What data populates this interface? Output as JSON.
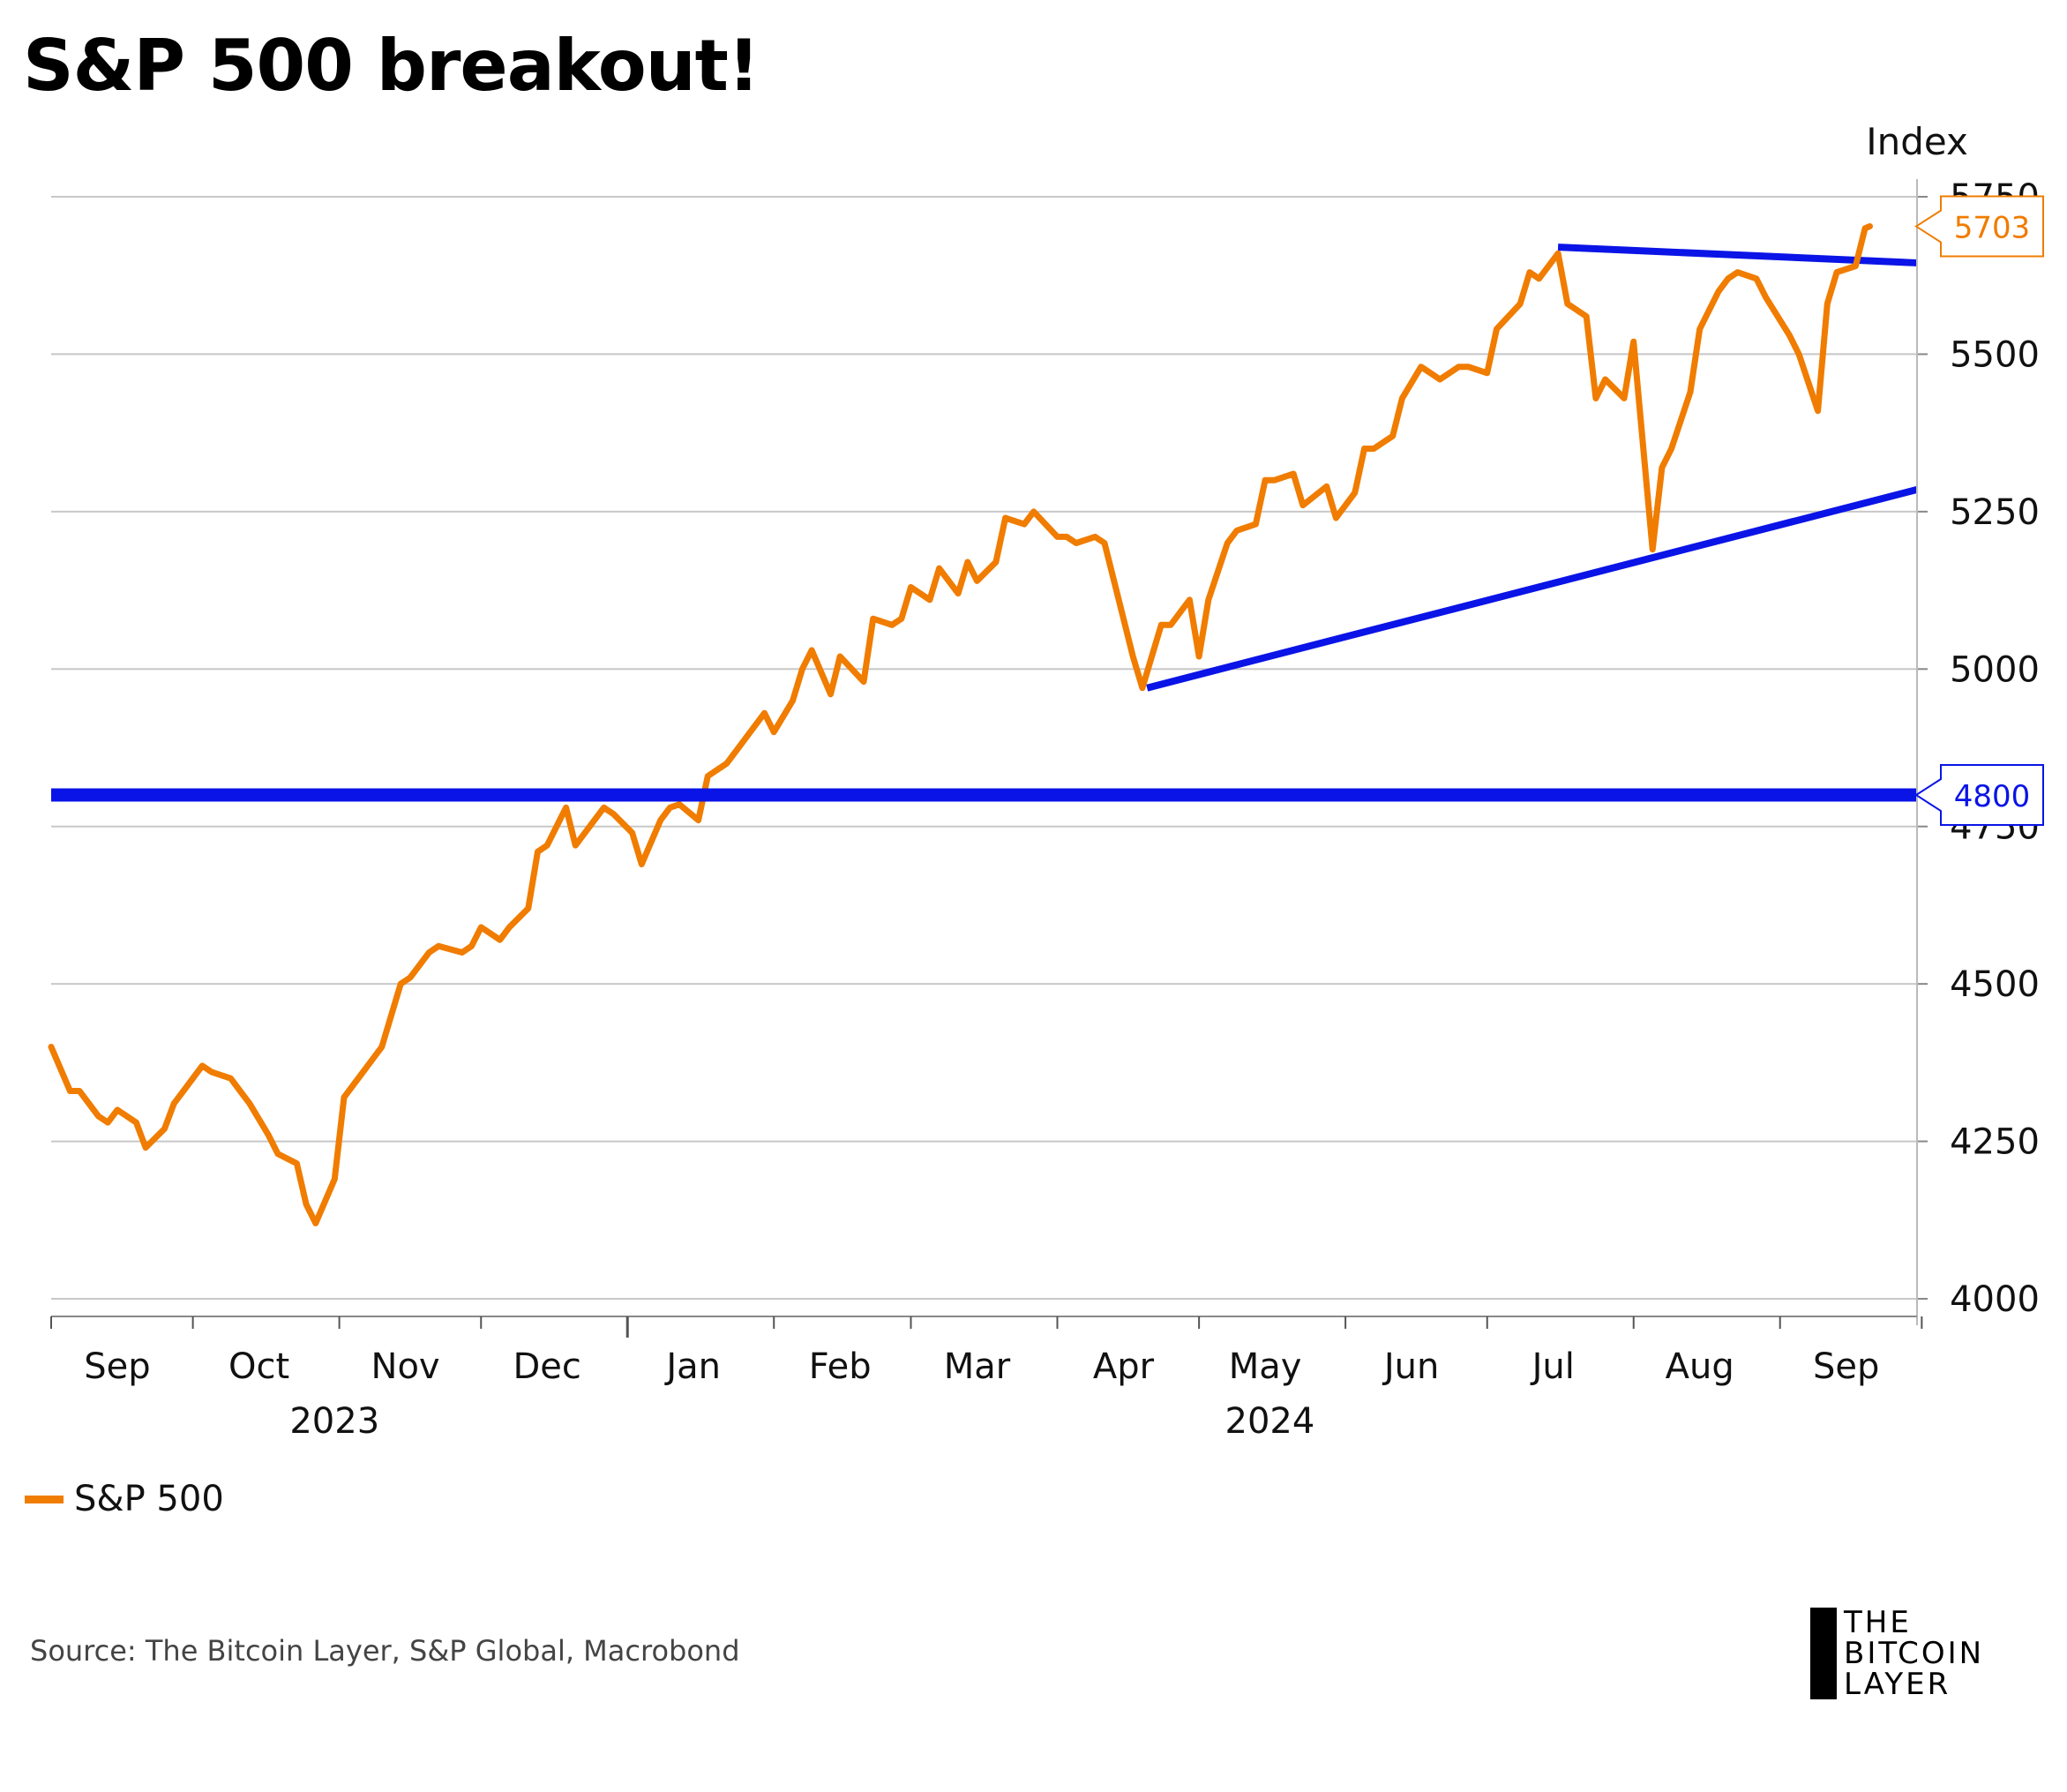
{
  "title": "S&P 500 breakout!",
  "source": "Source: The Bitcoin Layer, S&P Global, Macrobond",
  "logo": {
    "lines": [
      "THE",
      "BITCOIN",
      "LAYER"
    ]
  },
  "legend": [
    {
      "name": "S&P 500",
      "color": "#F07C00"
    }
  ],
  "chart_data": {
    "type": "line",
    "ylabel": "Index",
    "ylim": [
      4000,
      5750
    ],
    "y_ticks": [
      4000,
      4250,
      4500,
      4750,
      5000,
      5250,
      5500,
      5750
    ],
    "grid": true,
    "legend_position": "bottom-left",
    "xlim": [
      "2023-09-01",
      "2024-09-30"
    ],
    "x_tick_labels": [
      {
        "label": "Sep",
        "date": "2023-09-15"
      },
      {
        "label": "Oct",
        "date": "2023-10-15"
      },
      {
        "label": "Nov",
        "date": "2023-11-15"
      },
      {
        "label": "Dec",
        "date": "2023-12-15"
      },
      {
        "label": "Jan",
        "date": "2024-01-15"
      },
      {
        "label": "Feb",
        "date": "2024-02-15"
      },
      {
        "label": "Mar",
        "date": "2024-03-15"
      },
      {
        "label": "Apr",
        "date": "2024-04-15"
      },
      {
        "label": "May",
        "date": "2024-05-15"
      },
      {
        "label": "Jun",
        "date": "2024-06-15"
      },
      {
        "label": "Jul",
        "date": "2024-07-15"
      },
      {
        "label": "Aug",
        "date": "2024-08-15"
      },
      {
        "label": "Sep",
        "date": "2024-09-15"
      }
    ],
    "x_ticks": [
      "2023-09-01",
      "2023-10-01",
      "2023-11-01",
      "2023-12-01",
      "2024-01-01",
      "2024-02-01",
      "2024-03-01",
      "2024-04-01",
      "2024-05-01",
      "2024-06-01",
      "2024-07-01",
      "2024-08-01",
      "2024-09-01",
      "2024-10-01"
    ],
    "year_labels": [
      {
        "label": "2023",
        "date": "2023-10-31"
      },
      {
        "label": "2024",
        "date": "2024-05-16"
      }
    ],
    "series": [
      {
        "name": "S&P 500",
        "color": "#F07C00",
        "x": [
          "2023-09-01",
          "2023-09-05",
          "2023-09-07",
          "2023-09-11",
          "2023-09-13",
          "2023-09-15",
          "2023-09-19",
          "2023-09-21",
          "2023-09-25",
          "2023-09-27",
          "2023-09-29",
          "2023-10-03",
          "2023-10-05",
          "2023-10-09",
          "2023-10-11",
          "2023-10-13",
          "2023-10-17",
          "2023-10-19",
          "2023-10-23",
          "2023-10-25",
          "2023-10-27",
          "2023-10-31",
          "2023-11-02",
          "2023-11-06",
          "2023-11-08",
          "2023-11-10",
          "2023-11-14",
          "2023-11-16",
          "2023-11-20",
          "2023-11-22",
          "2023-11-27",
          "2023-11-29",
          "2023-12-01",
          "2023-12-05",
          "2023-12-07",
          "2023-12-11",
          "2023-12-13",
          "2023-12-15",
          "2023-12-19",
          "2023-12-21",
          "2023-12-27",
          "2023-12-29",
          "2024-01-02",
          "2024-01-04",
          "2024-01-08",
          "2024-01-10",
          "2024-01-12",
          "2024-01-16",
          "2024-01-18",
          "2024-01-22",
          "2024-01-24",
          "2024-01-26",
          "2024-01-30",
          "2024-02-01",
          "2024-02-05",
          "2024-02-07",
          "2024-02-09",
          "2024-02-13",
          "2024-02-15",
          "2024-02-20",
          "2024-02-22",
          "2024-02-26",
          "2024-02-28",
          "2024-03-01",
          "2024-03-05",
          "2024-03-07",
          "2024-03-11",
          "2024-03-13",
          "2024-03-15",
          "2024-03-19",
          "2024-03-21",
          "2024-03-25",
          "2024-03-27",
          "2024-04-01",
          "2024-04-03",
          "2024-04-05",
          "2024-04-09",
          "2024-04-11",
          "2024-04-15",
          "2024-04-17",
          "2024-04-19",
          "2024-04-23",
          "2024-04-25",
          "2024-04-29",
          "2024-05-01",
          "2024-05-03",
          "2024-05-07",
          "2024-05-09",
          "2024-05-13",
          "2024-05-15",
          "2024-05-17",
          "2024-05-21",
          "2024-05-23",
          "2024-05-28",
          "2024-05-30",
          "2024-06-03",
          "2024-06-05",
          "2024-06-07",
          "2024-06-11",
          "2024-06-13",
          "2024-06-17",
          "2024-06-19",
          "2024-06-21",
          "2024-06-25",
          "2024-06-27",
          "2024-07-01",
          "2024-07-03",
          "2024-07-08",
          "2024-07-10",
          "2024-07-12",
          "2024-07-16",
          "2024-07-18",
          "2024-07-22",
          "2024-07-24",
          "2024-07-26",
          "2024-07-30",
          "2024-08-01",
          "2024-08-05",
          "2024-08-07",
          "2024-08-09",
          "2024-08-13",
          "2024-08-15",
          "2024-08-19",
          "2024-08-21",
          "2024-08-23",
          "2024-08-27",
          "2024-08-29",
          "2024-09-03",
          "2024-09-05",
          "2024-09-09",
          "2024-09-11",
          "2024-09-13",
          "2024-09-17",
          "2024-09-19",
          "2024-09-20"
        ],
        "values": [
          4400,
          4330,
          4330,
          4290,
          4280,
          4300,
          4280,
          4240,
          4270,
          4310,
          4330,
          4370,
          4360,
          4350,
          4330,
          4310,
          4260,
          4230,
          4215,
          4150,
          4120,
          4190,
          4320,
          4360,
          4380,
          4400,
          4500,
          4510,
          4550,
          4560,
          4550,
          4560,
          4590,
          4570,
          4590,
          4620,
          4710,
          4720,
          4780,
          4720,
          4780,
          4770,
          4740,
          4690,
          4760,
          4780,
          4785,
          4760,
          4830,
          4850,
          4870,
          4890,
          4930,
          4900,
          4950,
          5000,
          5030,
          4960,
          5020,
          4980,
          5080,
          5070,
          5080,
          5130,
          5110,
          5160,
          5120,
          5170,
          5140,
          5170,
          5240,
          5230,
          5250,
          5210,
          5210,
          5200,
          5210,
          5200,
          5080,
          5020,
          4970,
          5070,
          5070,
          5110,
          5020,
          5110,
          5200,
          5220,
          5230,
          5300,
          5300,
          5310,
          5260,
          5290,
          5240,
          5280,
          5350,
          5350,
          5370,
          5430,
          5480,
          5470,
          5460,
          5480,
          5480,
          5470,
          5540,
          5580,
          5630,
          5620,
          5660,
          5580,
          5560,
          5430,
          5460,
          5430,
          5520,
          5190,
          5320,
          5350,
          5440,
          5540,
          5600,
          5620,
          5630,
          5620,
          5590,
          5530,
          5500,
          5410,
          5580,
          5630,
          5640,
          5700,
          5703
        ]
      }
    ],
    "reference_lines": [
      {
        "type": "horizontal",
        "value": 4800,
        "label": "4800",
        "color": "#0A14E6"
      }
    ],
    "trendlines": [
      {
        "color": "#0A14E6",
        "from": {
          "x": "2024-04-20",
          "y": 4970
        },
        "to": {
          "x": "2024-09-30",
          "y": 5285
        }
      },
      {
        "color": "#0A14E6",
        "from": {
          "x": "2024-07-16",
          "y": 5670
        },
        "to": {
          "x": "2024-09-30",
          "y": 5645
        }
      }
    ],
    "last_value_label": {
      "value": "5703",
      "color": "#F07C00"
    }
  }
}
